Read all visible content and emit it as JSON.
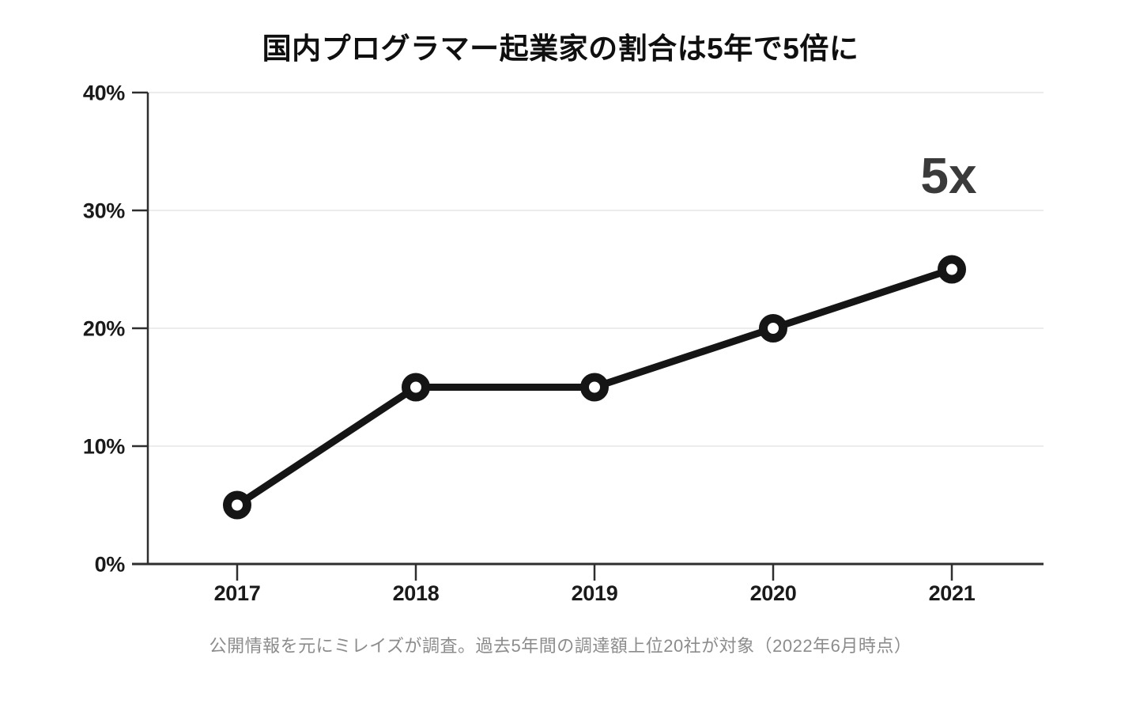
{
  "chart_data": {
    "type": "line",
    "title": "国内プログラマー起業家の割合は5年で5倍に",
    "caption": "公開情報を元にミレイズが調査。過去5年間の調達額上位20社が対象（2022年6月時点）",
    "annotation": {
      "text": "5x"
    },
    "categories": [
      "2017",
      "2018",
      "2019",
      "2020",
      "2021"
    ],
    "values": [
      5,
      15,
      15,
      20,
      25
    ],
    "unit": "%",
    "xlabel": "",
    "ylabel": "",
    "ylim": [
      0,
      40
    ],
    "y_ticks": [
      0,
      10,
      20,
      30,
      40
    ],
    "y_tick_labels": [
      "0%",
      "10%",
      "20%",
      "30%",
      "40%"
    ],
    "grid": "horizontal",
    "legend": "none",
    "marker": "open-circle",
    "colors": {
      "line": "#151515",
      "marker_fill": "#ffffff",
      "grid": "#ececec",
      "axis": "#2e2e2e",
      "tick_label": "#1a1a1a",
      "title": "#0f0f0f",
      "annotation": "#3a3a3a",
      "caption": "#8c8c8c",
      "background": "#ffffff"
    }
  }
}
